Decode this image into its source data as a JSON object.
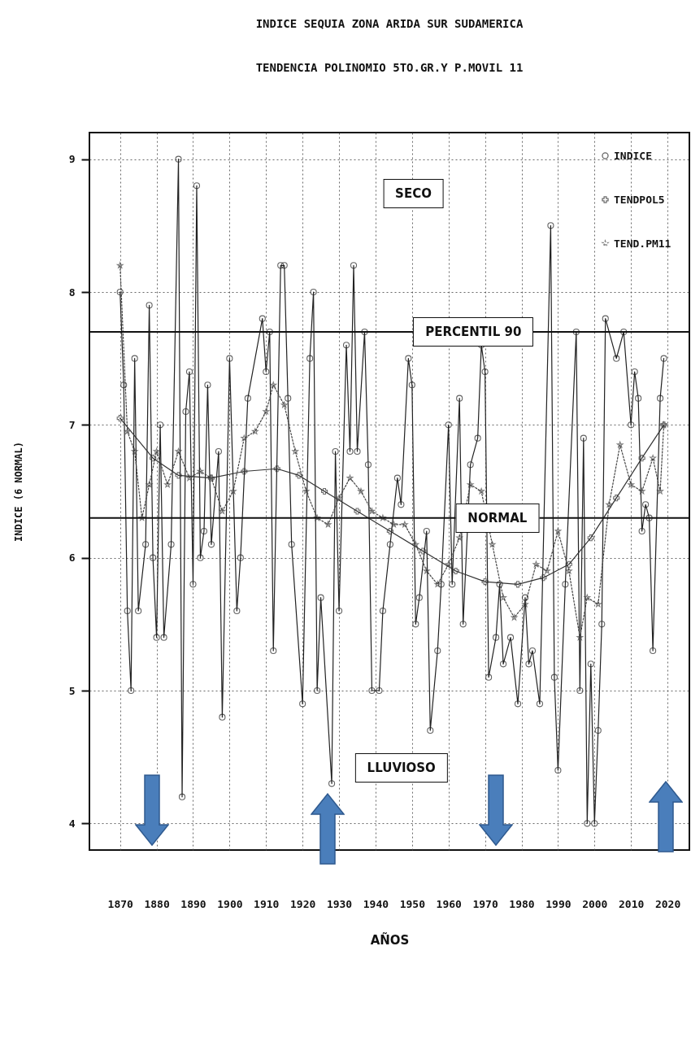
{
  "chart_data": {
    "type": "line",
    "title": "INDICE SEQUIA ZONA ARIDA SUR SUDAMERICA",
    "subtitle": "TENDENCIA POLINOMIO 5TO.GR.Y P.MOVIL 11",
    "xlabel": "AÑOS",
    "ylabel": "INDICE (6 NORMAL)",
    "annotations": [
      "SECO",
      "LLUVIOSO"
    ],
    "xlim": [
      1861.6,
      2026
    ],
    "ylim": [
      3.8,
      9.2
    ],
    "xticks": [
      1870,
      1880,
      1890,
      1900,
      1910,
      1920,
      1930,
      1940,
      1950,
      1960,
      1970,
      1980,
      1990,
      2000,
      2010,
      2020
    ],
    "yticks": [
      4,
      5,
      6,
      7,
      8,
      9
    ],
    "grid": true,
    "legend": "top right",
    "ref_lines": [
      {
        "axis": "y",
        "value": 7.7,
        "label": "PERCENTIL 90",
        "color": "#111111"
      },
      {
        "axis": "y",
        "value": 6.3,
        "label": "NORMAL",
        "color": "#111111"
      }
    ],
    "series": [
      {
        "name": "INDICE",
        "color": "#222222",
        "marker": "circle",
        "line_style": "solid",
        "x": [
          1870,
          1871,
          1872,
          1873,
          1874,
          1875,
          1877,
          1878,
          1879,
          1880,
          1881,
          1882,
          1884,
          1886,
          1887,
          1888,
          1889,
          1890,
          1891,
          1892,
          1893,
          1894,
          1895,
          1897,
          1898,
          1900,
          1902,
          1903,
          1905,
          1909,
          1910,
          1911,
          1912,
          1914,
          1915,
          1916,
          1917,
          1920,
          1922,
          1923,
          1924,
          1925,
          1928,
          1929,
          1930,
          1932,
          1933,
          1934,
          1935,
          1937,
          1938,
          1939,
          1941,
          1942,
          1944,
          1946,
          1947,
          1949,
          1950,
          1951,
          1952,
          1954,
          1955,
          1957,
          1958,
          1960,
          1961,
          1963,
          1964,
          1966,
          1968,
          1969,
          1970,
          1971,
          1973,
          1974,
          1975,
          1977,
          1979,
          1981,
          1982,
          1983,
          1985,
          1988,
          1989,
          1990,
          1992,
          1995,
          1996,
          1997,
          1998,
          1999,
          2000,
          2001,
          2002,
          2003,
          2006,
          2008,
          2010,
          2011,
          2012,
          2013,
          2014,
          2015,
          2016,
          2018,
          2019
        ],
        "values": [
          8.0,
          7.3,
          5.6,
          5.0,
          7.5,
          5.6,
          6.1,
          7.9,
          6.0,
          5.4,
          7.0,
          5.4,
          6.1,
          9.0,
          4.2,
          7.1,
          7.4,
          5.8,
          8.8,
          6.0,
          6.2,
          7.3,
          6.1,
          6.8,
          4.8,
          7.5,
          5.6,
          6.0,
          7.2,
          7.8,
          7.4,
          7.7,
          5.3,
          8.2,
          8.2,
          7.2,
          6.1,
          4.9,
          7.5,
          8.0,
          5.0,
          5.7,
          4.3,
          6.8,
          5.6,
          7.6,
          6.8,
          8.2,
          6.8,
          7.7,
          6.7,
          5.0,
          5.0,
          5.6,
          6.1,
          6.6,
          6.4,
          7.5,
          7.3,
          5.5,
          5.7,
          6.2,
          4.7,
          5.3,
          5.8,
          7.0,
          5.8,
          7.2,
          5.5,
          6.7,
          6.9,
          7.6,
          7.4,
          5.1,
          5.4,
          5.8,
          5.2,
          5.4,
          4.9,
          5.7,
          5.2,
          5.3,
          4.9,
          8.5,
          5.1,
          4.4,
          5.8,
          7.7,
          5.0,
          6.9,
          4.0,
          5.2,
          4.0,
          4.7,
          5.5,
          7.8,
          7.5,
          7.7,
          7.0,
          7.4,
          7.2,
          6.2,
          6.4,
          6.3,
          5.3,
          7.2,
          7.5
        ]
      },
      {
        "name": "TENDPOL5",
        "color": "#333333",
        "marker": "cross",
        "line_style": "solid",
        "x": [
          1870,
          1879,
          1886,
          1895,
          1904,
          1913,
          1919,
          1926,
          1935,
          1944,
          1953,
          1962,
          1970,
          1979,
          1986,
          1993,
          1999,
          2006,
          2013,
          2019
        ],
        "values": [
          7.05,
          6.75,
          6.62,
          6.6,
          6.65,
          6.67,
          6.62,
          6.5,
          6.35,
          6.2,
          6.05,
          5.9,
          5.82,
          5.8,
          5.85,
          5.95,
          6.15,
          6.45,
          6.75,
          7.0
        ]
      },
      {
        "name": "TEND.PM11",
        "color": "#444444",
        "marker": "star",
        "line_style": "dotted",
        "x": [
          1870,
          1872,
          1874,
          1876,
          1878,
          1880,
          1883,
          1886,
          1889,
          1892,
          1895,
          1898,
          1901,
          1904,
          1907,
          1910,
          1912,
          1915,
          1918,
          1921,
          1924,
          1927,
          1930,
          1933,
          1936,
          1939,
          1942,
          1945,
          1948,
          1951,
          1954,
          1957,
          1960,
          1963,
          1966,
          1969,
          1972,
          1975,
          1978,
          1981,
          1984,
          1987,
          1990,
          1993,
          1996,
          1998,
          2001,
          2004,
          2007,
          2010,
          2013,
          2016,
          2018,
          2019
        ],
        "values": [
          8.2,
          6.95,
          6.8,
          6.3,
          6.55,
          6.8,
          6.55,
          6.8,
          6.6,
          6.65,
          6.6,
          6.35,
          6.5,
          6.9,
          6.95,
          7.1,
          7.3,
          7.15,
          6.8,
          6.5,
          6.3,
          6.25,
          6.45,
          6.6,
          6.5,
          6.35,
          6.3,
          6.25,
          6.25,
          6.1,
          5.9,
          5.8,
          5.95,
          6.15,
          6.55,
          6.5,
          6.1,
          5.7,
          5.55,
          5.65,
          5.95,
          5.9,
          6.2,
          5.9,
          5.4,
          5.7,
          5.65,
          6.4,
          6.85,
          6.55,
          6.5,
          6.75,
          6.5,
          7.0
        ]
      }
    ]
  }
}
